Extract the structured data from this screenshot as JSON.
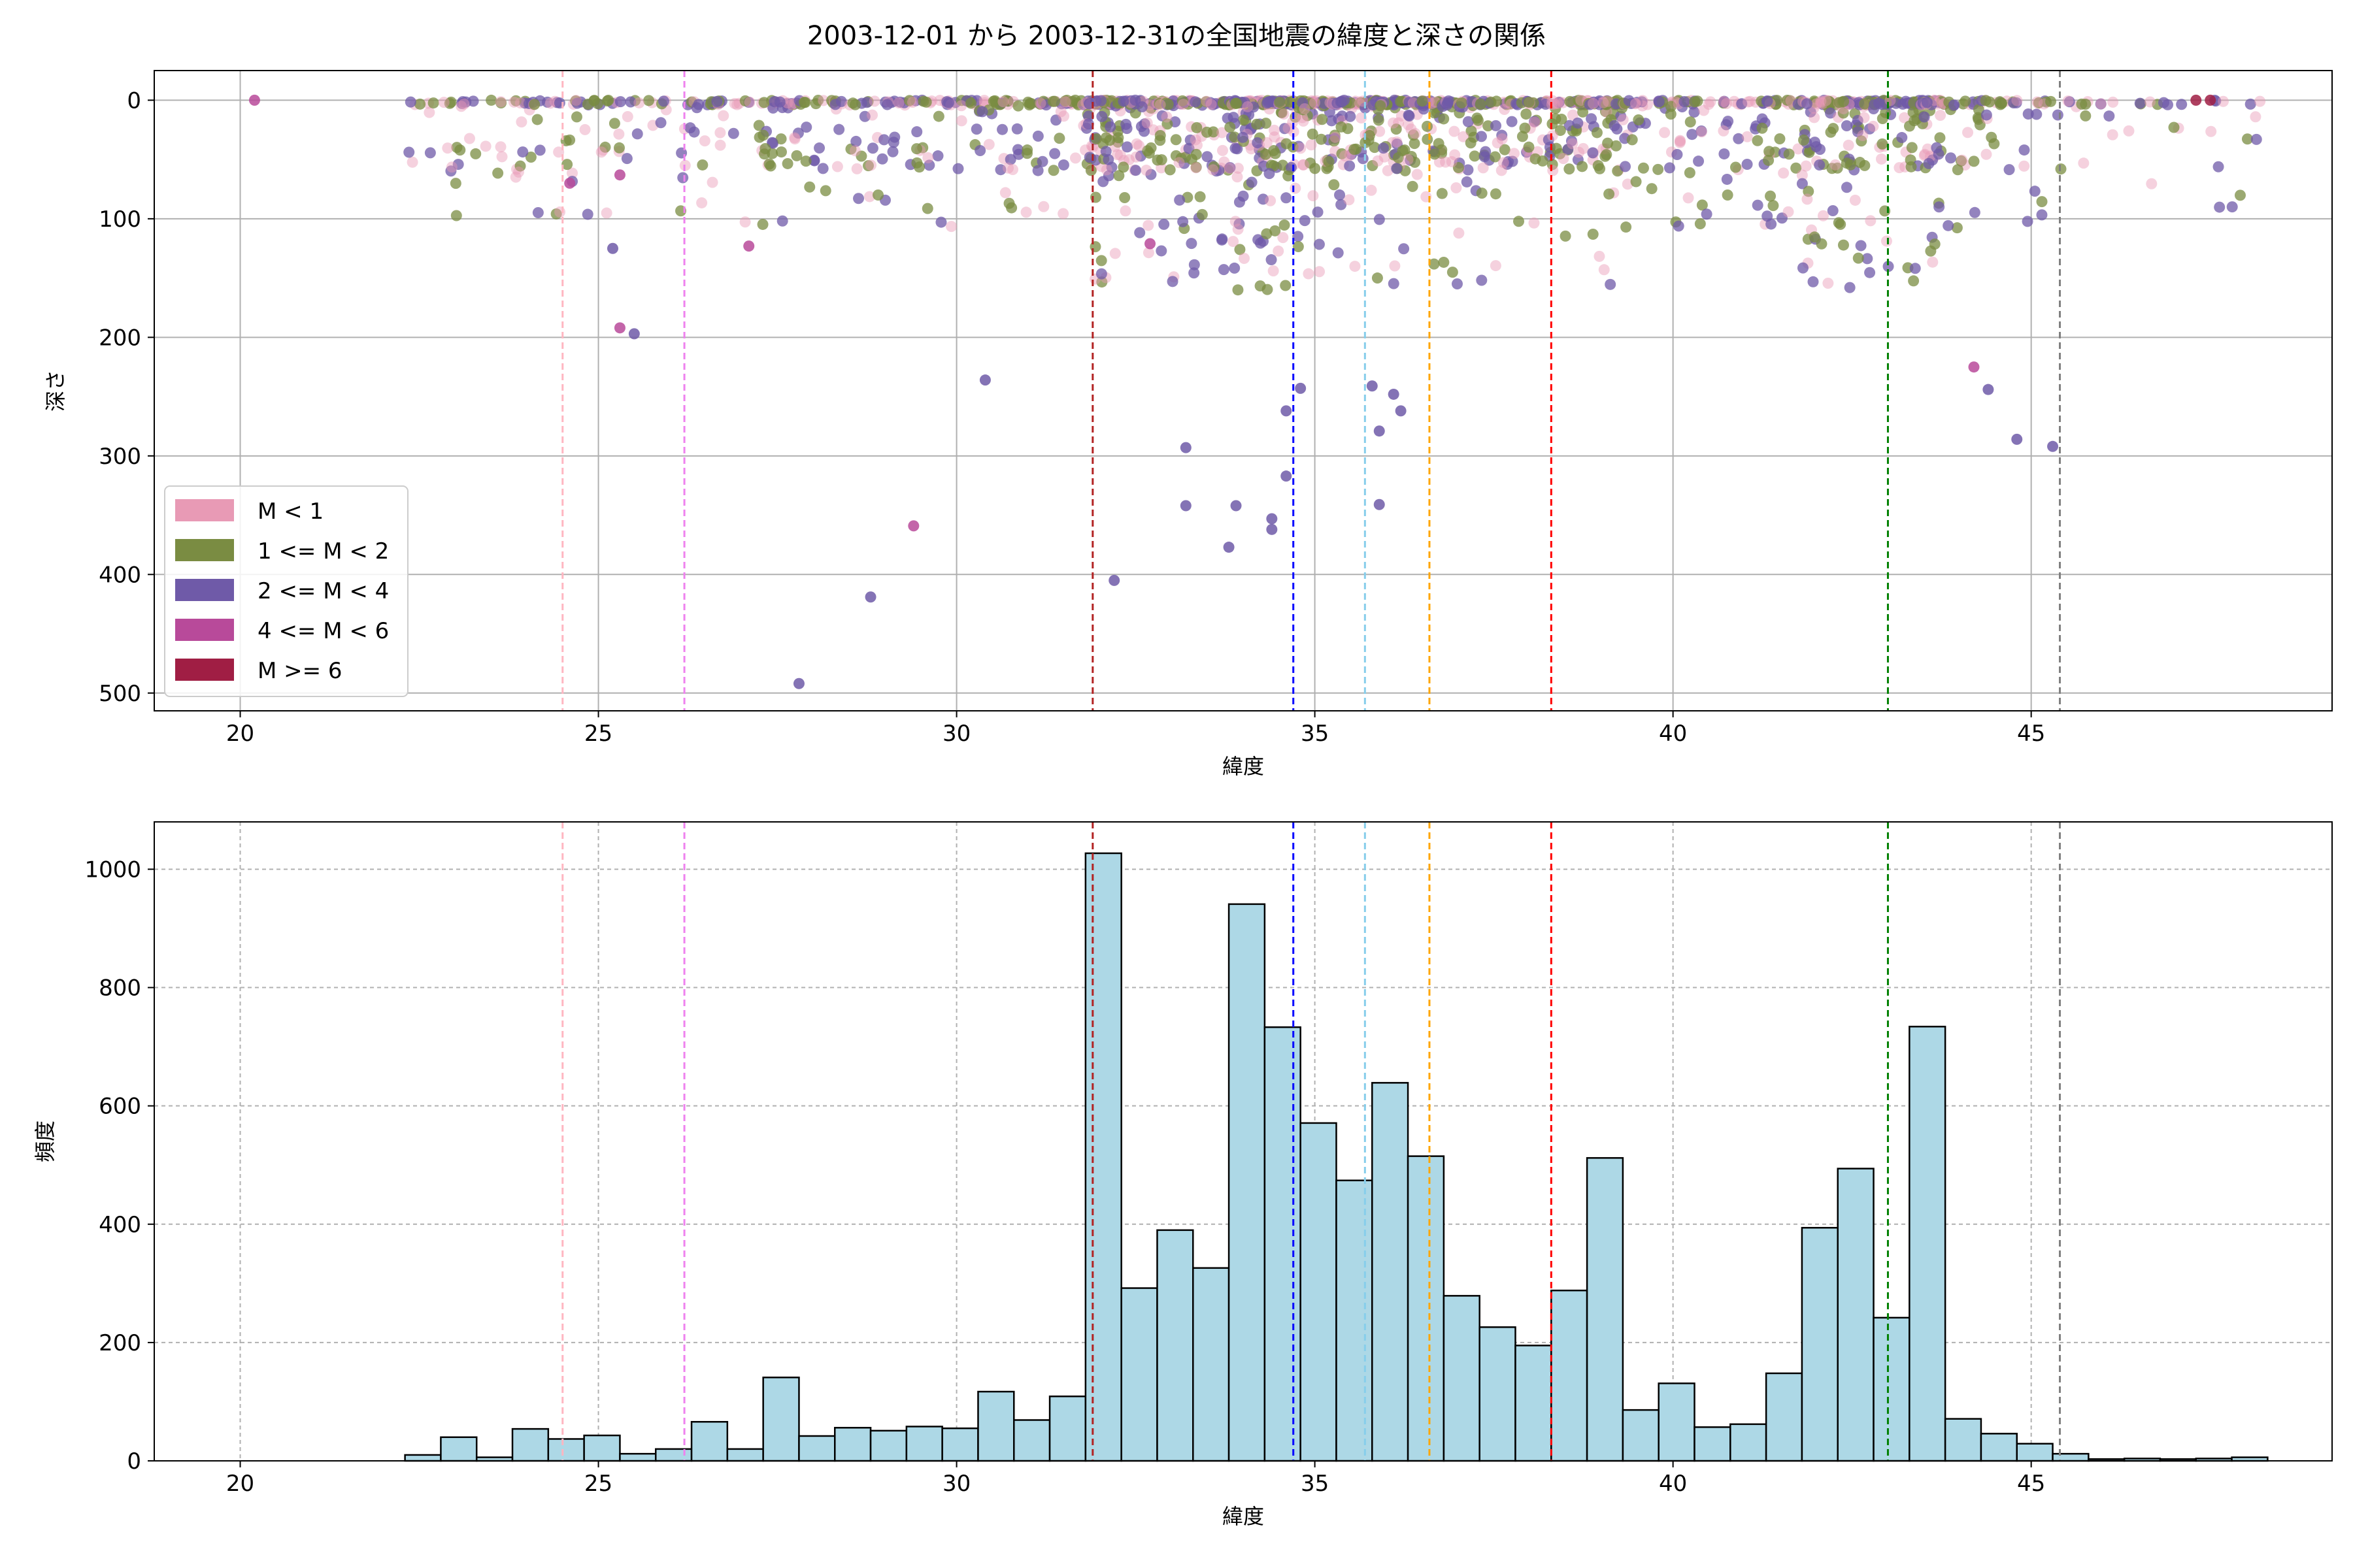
{
  "figure": {
    "title": "2003-12-01 から 2003-12-31の全国地震の緯度と深さの関係"
  },
  "chart_data": [
    {
      "type": "scatter",
      "xlabel": "緯度",
      "ylabel": "深さ",
      "xlim": [
        18.8,
        49.2
      ],
      "ylim": [
        515,
        -25
      ],
      "y_inverted": true,
      "xticks": [
        20,
        25,
        30,
        35,
        40,
        45
      ],
      "yticks": [
        0,
        100,
        200,
        300,
        400,
        500
      ],
      "grid": true,
      "legend_position": "lower-left",
      "legend": [
        {
          "label": "M < 1",
          "color": "#e89ab5"
        },
        {
          "label": "1 <= M < 2",
          "color": "#7a8c42"
        },
        {
          "label": "2 <= M < 4",
          "color": "#6f5aa8"
        },
        {
          "label": "4 <= M < 6",
          "color": "#b84a9a"
        },
        {
          "label": "M >= 6",
          "color": "#a01e44"
        }
      ],
      "notable_points": [
        {
          "x": 20.2,
          "y": 0,
          "magnitude_class": "4 <= M < 6"
        },
        {
          "x": 24.6,
          "y": 70,
          "magnitude_class": "4 <= M < 6"
        },
        {
          "x": 25.3,
          "y": 63,
          "magnitude_class": "4 <= M < 6"
        },
        {
          "x": 25.3,
          "y": 192,
          "magnitude_class": "4 <= M < 6"
        },
        {
          "x": 25.5,
          "y": 197,
          "magnitude_class": "2 <= M < 4"
        },
        {
          "x": 25.2,
          "y": 125,
          "magnitude_class": "2 <= M < 4"
        },
        {
          "x": 27.1,
          "y": 123,
          "magnitude_class": "4 <= M < 6"
        },
        {
          "x": 27.8,
          "y": 492,
          "magnitude_class": "2 <= M < 4"
        },
        {
          "x": 28.8,
          "y": 419,
          "magnitude_class": "2 <= M < 4"
        },
        {
          "x": 29.4,
          "y": 359,
          "magnitude_class": "4 <= M < 6"
        },
        {
          "x": 30.4,
          "y": 236,
          "magnitude_class": "2 <= M < 4"
        },
        {
          "x": 32.2,
          "y": 405,
          "magnitude_class": "2 <= M < 4"
        },
        {
          "x": 32.7,
          "y": 121,
          "magnitude_class": "4 <= M < 6"
        },
        {
          "x": 33.2,
          "y": 293,
          "magnitude_class": "2 <= M < 4"
        },
        {
          "x": 33.2,
          "y": 342,
          "magnitude_class": "2 <= M < 4"
        },
        {
          "x": 33.8,
          "y": 377,
          "magnitude_class": "2 <= M < 4"
        },
        {
          "x": 33.9,
          "y": 342,
          "magnitude_class": "2 <= M < 4"
        },
        {
          "x": 34.4,
          "y": 353,
          "magnitude_class": "2 <= M < 4"
        },
        {
          "x": 34.4,
          "y": 362,
          "magnitude_class": "2 <= M < 4"
        },
        {
          "x": 34.6,
          "y": 317,
          "magnitude_class": "2 <= M < 4"
        },
        {
          "x": 34.6,
          "y": 262,
          "magnitude_class": "2 <= M < 4"
        },
        {
          "x": 34.8,
          "y": 243,
          "magnitude_class": "2 <= M < 4"
        },
        {
          "x": 35.8,
          "y": 241,
          "magnitude_class": "2 <= M < 4"
        },
        {
          "x": 35.9,
          "y": 279,
          "magnitude_class": "2 <= M < 4"
        },
        {
          "x": 35.9,
          "y": 341,
          "magnitude_class": "2 <= M < 4"
        },
        {
          "x": 36.1,
          "y": 248,
          "magnitude_class": "2 <= M < 4"
        },
        {
          "x": 36.2,
          "y": 262,
          "magnitude_class": "2 <= M < 4"
        },
        {
          "x": 44.2,
          "y": 225,
          "magnitude_class": "4 <= M < 6"
        },
        {
          "x": 44.4,
          "y": 244,
          "magnitude_class": "2 <= M < 4"
        },
        {
          "x": 44.8,
          "y": 286,
          "magnitude_class": "2 <= M < 4"
        },
        {
          "x": 45.3,
          "y": 292,
          "magnitude_class": "2 <= M < 4"
        },
        {
          "x": 47.3,
          "y": 0,
          "magnitude_class": "M >= 6"
        },
        {
          "x": 47.5,
          "y": 0,
          "magnitude_class": "M >= 6"
        }
      ],
      "vlines": [
        {
          "x": 24.5,
          "color": "#ffb6c1"
        },
        {
          "x": 26.2,
          "color": "#ee82ee"
        },
        {
          "x": 31.9,
          "color": "#b22222"
        },
        {
          "x": 34.7,
          "color": "#0000ff"
        },
        {
          "x": 35.7,
          "color": "#87ceeb"
        },
        {
          "x": 36.6,
          "color": "#ffa500"
        },
        {
          "x": 38.3,
          "color": "#ff0000"
        },
        {
          "x": 43.0,
          "color": "#008000"
        },
        {
          "x": 45.4,
          "color": "#808080"
        }
      ]
    },
    {
      "type": "bar",
      "subtype": "histogram",
      "xlabel": "緯度",
      "ylabel": "頻度",
      "xlim": [
        18.8,
        49.2
      ],
      "ylim": [
        0,
        1080
      ],
      "xticks": [
        20,
        25,
        30,
        35,
        40,
        45
      ],
      "yticks": [
        0,
        200,
        400,
        600,
        800,
        1000
      ],
      "grid": true,
      "bar_color": "#add8e6",
      "edge_color": "#000000",
      "bin_start": 22.3,
      "bin_width": 0.5,
      "values": [
        10,
        40,
        6,
        54,
        37,
        43,
        12,
        20,
        66,
        20,
        141,
        42,
        56,
        51,
        58,
        55,
        117,
        69,
        109,
        1027,
        292,
        390,
        326,
        941,
        733,
        571,
        474,
        639,
        515,
        279,
        226,
        195,
        288,
        512,
        86,
        131,
        57,
        62,
        148,
        394,
        494,
        242,
        734,
        71,
        46,
        29,
        12,
        3,
        4,
        3,
        4,
        6
      ],
      "vlines": [
        {
          "x": 24.5,
          "color": "#ffb6c1"
        },
        {
          "x": 26.2,
          "color": "#ee82ee"
        },
        {
          "x": 31.9,
          "color": "#b22222"
        },
        {
          "x": 34.7,
          "color": "#0000ff"
        },
        {
          "x": 35.7,
          "color": "#87ceeb"
        },
        {
          "x": 36.6,
          "color": "#ffa500"
        },
        {
          "x": 38.3,
          "color": "#ff0000"
        },
        {
          "x": 43.0,
          "color": "#008000"
        },
        {
          "x": 45.4,
          "color": "#808080"
        }
      ]
    }
  ]
}
